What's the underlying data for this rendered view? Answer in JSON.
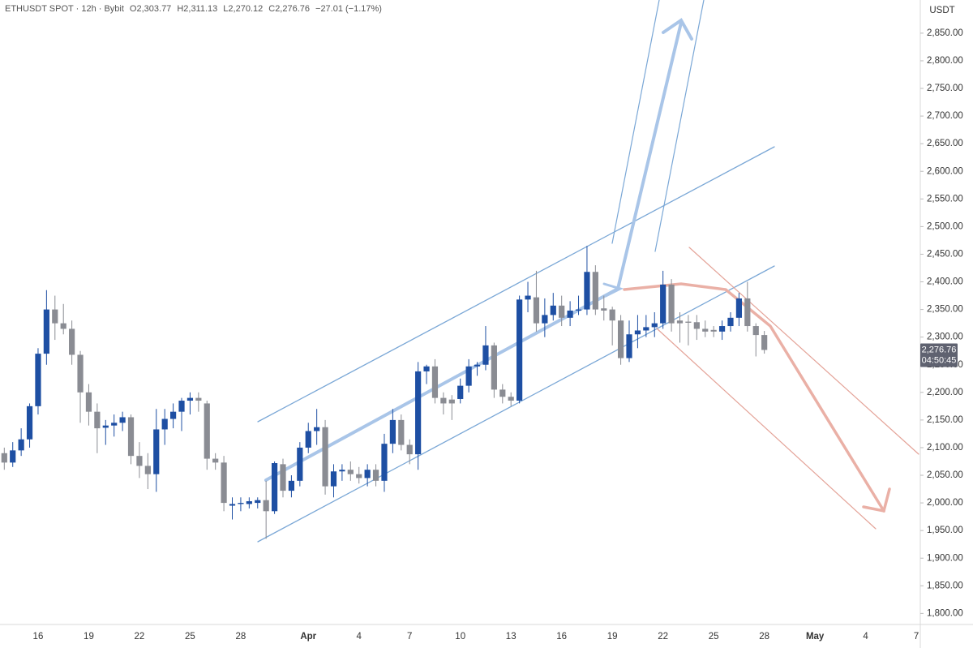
{
  "header": {
    "symbol": "ETHUSDT SPOT · 12h · Bybit",
    "ohlc": [
      {
        "key": "O",
        "value": "2,303.77"
      },
      {
        "key": "H",
        "value": "2,311.13"
      },
      {
        "key": "L",
        "value": "2,270.12"
      },
      {
        "key": "C",
        "value": "2,276.76"
      }
    ],
    "change": "−27.01 (−1.17%)",
    "price_tag": "2,276.76",
    "countdown": "04:50:45"
  },
  "chart_data": {
    "type": "candlestick",
    "y_axis_label": "USDT",
    "categories": [
      null,
      null,
      null,
      null,
      "16",
      null,
      null,
      null,
      null,
      null,
      "19",
      null,
      null,
      null,
      null,
      null,
      "22",
      null,
      null,
      null,
      null,
      null,
      "25",
      null,
      null,
      null,
      null,
      null,
      "28",
      null,
      null,
      null,
      null,
      null,
      null,
      null,
      "Apr",
      null,
      null,
      null,
      null,
      null,
      "4",
      null,
      null,
      null,
      null,
      null,
      "7",
      null,
      null,
      null,
      null,
      null,
      "10",
      null,
      null,
      null,
      null,
      null,
      "13",
      null,
      null,
      null,
      null,
      null,
      "16",
      null,
      null,
      null,
      null,
      null,
      "19",
      null,
      null,
      null,
      null,
      null,
      "22",
      null,
      null,
      null,
      null,
      null,
      "25",
      null,
      null,
      null,
      null,
      null,
      "28",
      null,
      null,
      null,
      null,
      null,
      "May",
      null,
      null,
      null,
      null,
      null,
      "4",
      null,
      null,
      null,
      null,
      null,
      "7"
    ],
    "open": [
      2090,
      2073,
      2095,
      2115,
      2175,
      2270,
      2350,
      2325,
      2315,
      2268,
      2200,
      2165,
      2136,
      2140,
      2145,
      2155,
      2085,
      2067,
      2052,
      2133,
      2152,
      2165,
      2185,
      2190,
      2180,
      2080,
      2073,
      1995,
      1998,
      1998,
      2000,
      2005,
      1985,
      2070,
      2022,
      2040,
      2100,
      2130,
      2137,
      2030,
      2057,
      2060,
      2052,
      2045,
      2060,
      2040,
      2107,
      2150,
      2105,
      2088,
      2238,
      2247,
      2190,
      2187,
      2188,
      2212,
      2247,
      2250,
      2285,
      2205,
      2192,
      2185,
      2368,
      2372,
      2325,
      2340,
      2357,
      2335,
      2348,
      2350,
      2418,
      2352,
      2350,
      2330,
      2262,
      2305,
      2312,
      2318,
      2325,
      2395,
      2330,
      2328,
      2327,
      2315,
      2313,
      2310,
      2320,
      2335,
      2370,
      2320,
      2303.77,
      null,
      null,
      null,
      null,
      null,
      null,
      null,
      null,
      null,
      null,
      null,
      null,
      null,
      null,
      null,
      null,
      null,
      null
    ],
    "high": [
      2100,
      2110,
      2135,
      2180,
      2280,
      2385,
      2375,
      2360,
      2330,
      2275,
      2215,
      2180,
      2150,
      2160,
      2165,
      2160,
      2110,
      2090,
      2170,
      2170,
      2180,
      2190,
      2200,
      2200,
      2185,
      2090,
      2085,
      2010,
      2010,
      2010,
      2010,
      2040,
      2075,
      2080,
      2050,
      2110,
      2145,
      2170,
      2150,
      2070,
      2070,
      2075,
      2065,
      2070,
      2070,
      2125,
      2170,
      2160,
      2115,
      2255,
      2250,
      2260,
      2200,
      2195,
      2225,
      2260,
      2255,
      2320,
      2290,
      2215,
      2200,
      2375,
      2400,
      2420,
      2370,
      2380,
      2375,
      2365,
      2375,
      2465,
      2430,
      2375,
      2355,
      2340,
      2330,
      2340,
      2340,
      2345,
      2420,
      2405,
      2345,
      2340,
      2340,
      2330,
      2320,
      2330,
      2345,
      2380,
      2400,
      2325,
      2311.13,
      null,
      null,
      null,
      null,
      null,
      null,
      null,
      null,
      null,
      null,
      null,
      null,
      null,
      null,
      null,
      null,
      null,
      null
    ],
    "low": [
      2060,
      2065,
      2085,
      2100,
      2160,
      2250,
      2295,
      2305,
      2250,
      2145,
      2140,
      2090,
      2105,
      2120,
      2130,
      2070,
      2045,
      2025,
      2020,
      2105,
      2135,
      2130,
      2160,
      2165,
      2060,
      2060,
      1985,
      1970,
      1985,
      1990,
      1990,
      1935,
      1980,
      2010,
      2010,
      2030,
      2090,
      2105,
      2015,
      2010,
      2040,
      2040,
      2035,
      2030,
      2030,
      2020,
      2090,
      2095,
      2070,
      2060,
      2215,
      2180,
      2160,
      2150,
      2180,
      2200,
      2230,
      2240,
      2190,
      2180,
      2175,
      2180,
      2345,
      2310,
      2300,
      2330,
      2320,
      2320,
      2340,
      2340,
      2340,
      2330,
      2285,
      2250,
      2255,
      2280,
      2300,
      2300,
      2315,
      2310,
      2290,
      2285,
      2295,
      2300,
      2300,
      2295,
      2310,
      2320,
      2310,
      2265,
      2270.12,
      null,
      null,
      null,
      null,
      null,
      null,
      null,
      null,
      null,
      null,
      null,
      null,
      null,
      null,
      null,
      null,
      null,
      null
    ],
    "close": [
      2073,
      2095,
      2115,
      2175,
      2270,
      2350,
      2325,
      2315,
      2268,
      2200,
      2165,
      2135,
      2140,
      2145,
      2155,
      2085,
      2067,
      2052,
      2133,
      2152,
      2165,
      2185,
      2190,
      2185,
      2080,
      2073,
      2000,
      1998,
      2000,
      2003,
      2005,
      1985,
      2072,
      2022,
      2040,
      2100,
      2130,
      2137,
      2030,
      2057,
      2060,
      2052,
      2045,
      2060,
      2040,
      2107,
      2150,
      2105,
      2088,
      2238,
      2247,
      2190,
      2180,
      2180,
      2212,
      2247,
      2250,
      2285,
      2205,
      2192,
      2185,
      2368,
      2375,
      2325,
      2340,
      2357,
      2335,
      2348,
      2350,
      2418,
      2350,
      2348,
      2330,
      2262,
      2305,
      2312,
      2318,
      2325,
      2395,
      2325,
      2325,
      2326,
      2315,
      2310,
      2310,
      2320,
      2335,
      2370,
      2320,
      2303.77,
      2276.76,
      null,
      null,
      null,
      null,
      null,
      null,
      null,
      null,
      null,
      null,
      null,
      null,
      null,
      null,
      null,
      null,
      null,
      null
    ],
    "up_color": "#1e4fa3",
    "down_color": "#8a8c93",
    "ylim": [
      1780,
      2910
    ],
    "yticks": [
      {
        "value": 1800,
        "label": "1,800.00"
      },
      {
        "value": 1850,
        "label": "1,850.00"
      },
      {
        "value": 1900,
        "label": "1,900.00"
      },
      {
        "value": 1950,
        "label": "1,950.00"
      },
      {
        "value": 2000,
        "label": "2,000.00"
      },
      {
        "value": 2050,
        "label": "2,050.00"
      },
      {
        "value": 2100,
        "label": "2,100.00"
      },
      {
        "value": 2150,
        "label": "2,150.00"
      },
      {
        "value": 2200,
        "label": "2,200.00"
      },
      {
        "value": 2250,
        "label": "2,250.00"
      },
      {
        "value": 2300,
        "label": "2,300.00"
      },
      {
        "value": 2350,
        "label": "2,350.00"
      },
      {
        "value": 2400,
        "label": "2,400.00"
      },
      {
        "value": 2450,
        "label": "2,450.00"
      },
      {
        "value": 2500,
        "label": "2,500.00"
      },
      {
        "value": 2550,
        "label": "2,550.00"
      },
      {
        "value": 2600,
        "label": "2,600.00"
      },
      {
        "value": 2650,
        "label": "2,650.00"
      },
      {
        "value": 2700,
        "label": "2,700.00"
      },
      {
        "value": 2750,
        "label": "2,750.00"
      },
      {
        "value": 2800,
        "label": "2,800.00"
      },
      {
        "value": 2850,
        "label": "2,850.00"
      }
    ],
    "grid": false
  }
}
